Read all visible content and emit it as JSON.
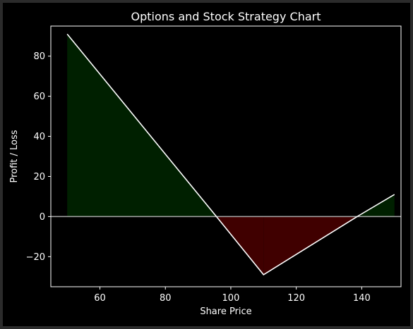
{
  "chart_data": {
    "type": "line",
    "title": "Options and Stock Strategy Chart",
    "xlabel": "Share Price",
    "ylabel": "Profit / Loss",
    "xlim": [
      45,
      152
    ],
    "ylim": [
      -35,
      95
    ],
    "xticks": [
      60,
      80,
      100,
      120,
      140
    ],
    "yticks": [
      -20,
      0,
      20,
      40,
      60,
      80
    ],
    "xtick_labels": [
      "60",
      "80",
      "100",
      "120",
      "140"
    ],
    "ytick_labels": [
      "−20",
      "0",
      "20",
      "40",
      "60",
      "80"
    ],
    "series": [
      {
        "x": [
          50,
          95.6,
          110,
          138.6,
          150
        ],
        "y": [
          91,
          0,
          -29,
          0,
          11
        ]
      }
    ],
    "fill": {
      "profit_color": "#002000",
      "loss_color": "#400000"
    },
    "zero_line": {
      "y": 0,
      "color": "#aaaaaa"
    },
    "line_color": "#ffffff",
    "background": "#000000",
    "grid": false
  }
}
